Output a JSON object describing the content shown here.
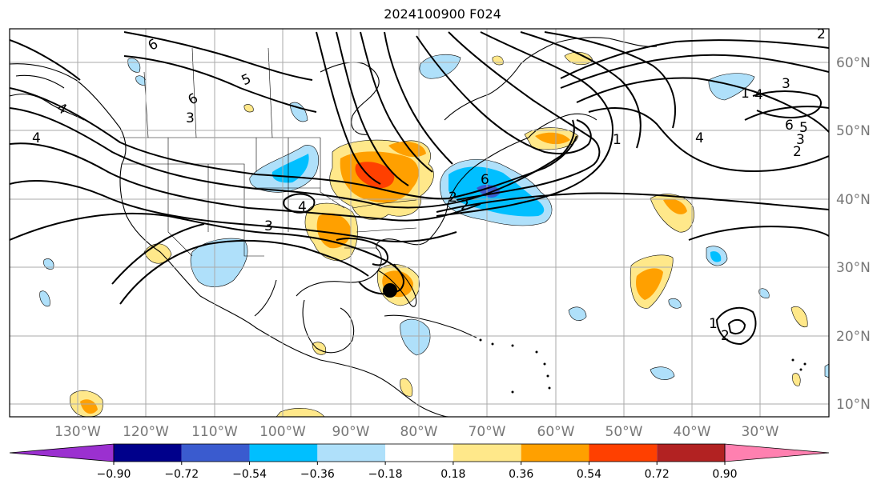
{
  "title": "2024100900 F024",
  "map": {
    "lon_labels": [
      "130°W",
      "120°W",
      "110°W",
      "100°W",
      "90°W",
      "80°W",
      "70°W",
      "60°W",
      "50°W",
      "40°W",
      "30°W"
    ],
    "lat_labels": [
      "60°N",
      "50°N",
      "40°N",
      "30°N",
      "20°N",
      "10°N"
    ],
    "contour_labels": [
      "6",
      "6",
      "5",
      "4",
      "4",
      "3",
      "3",
      "4",
      "2",
      "2",
      "6",
      "1",
      "4",
      "6",
      "5",
      "3",
      "2",
      "1",
      "3",
      "4",
      "2",
      "1",
      "2"
    ]
  },
  "colorbar": {
    "ticks": [
      "−0.90",
      "−0.72",
      "−0.54",
      "−0.36",
      "−0.18",
      "0.18",
      "0.36",
      "0.54",
      "0.72",
      "0.90"
    ],
    "colors": [
      "#9b30d0",
      "#00008b",
      "#3a5bcf",
      "#00bfff",
      "#afe0fa",
      "#ffffff",
      "#ffe88a",
      "#ffa000",
      "#ff4000",
      "#b22222",
      "#ff80b0"
    ]
  },
  "colors": {
    "grid": "#aaaaaa",
    "contour": "#000000",
    "land": "#000000"
  }
}
